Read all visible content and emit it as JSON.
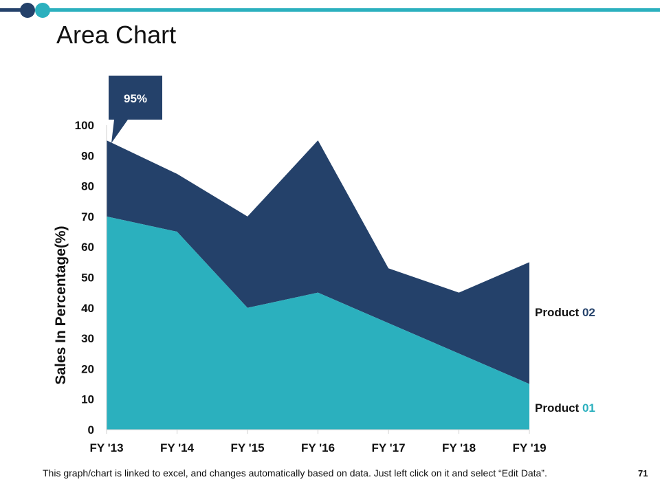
{
  "slide": {
    "title": "Area Chart",
    "footer_note": "This graph/chart is linked to excel, and changes automatically based on data. Just left click on it and select “Edit Data”.",
    "page_number": "71"
  },
  "colors": {
    "product_01": "#2BB0BE",
    "product_02": "#24416A",
    "accent_dark": "#24416A",
    "accent_teal": "#2BB0BE",
    "text": "#111111"
  },
  "chart_data": {
    "type": "area",
    "stacked": true,
    "title": "",
    "xlabel": "",
    "ylabel": "Sales In Percentage(%)",
    "categories": [
      "FY '13",
      "FY '14",
      "FY '15",
      "FY '16",
      "FY '17",
      "FY '18",
      "FY '19"
    ],
    "ylim": [
      0,
      100
    ],
    "yticks": [
      0,
      10,
      20,
      30,
      40,
      50,
      60,
      70,
      80,
      90,
      100
    ],
    "grid": false,
    "series": [
      {
        "name": "Product 01",
        "label_prefix": "Product ",
        "label_number": "01",
        "color": "#2BB0BE",
        "values": [
          70,
          65,
          40,
          45,
          35,
          25,
          15
        ]
      },
      {
        "name": "Product 02",
        "label_prefix": "Product ",
        "label_number": "02",
        "color": "#24416A",
        "values": [
          25,
          19,
          30,
          50,
          18,
          20,
          40
        ]
      }
    ],
    "stack_totals": [
      95,
      84,
      70,
      95,
      53,
      45,
      55
    ],
    "annotation": {
      "text": "95%",
      "category": "FY '13",
      "value": 95
    }
  }
}
